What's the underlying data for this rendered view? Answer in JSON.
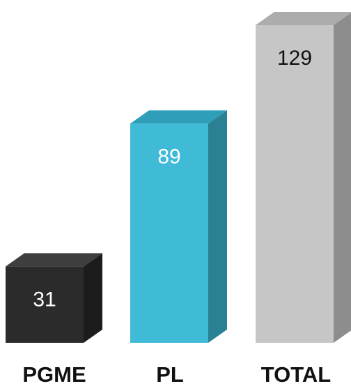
{
  "chart_data": {
    "type": "bar",
    "style": "3d-columns",
    "categories": [
      "PGME",
      "PL",
      "TOTAL"
    ],
    "values": [
      31,
      89,
      129
    ],
    "title": "",
    "xlabel": "",
    "ylabel": "",
    "ylim": [
      0,
      129
    ],
    "grid": false,
    "legend": "none",
    "colors": {
      "PGME": {
        "front": "#2b2b2b",
        "top": "#3e3e3e",
        "side": "#1c1c1c",
        "label": "#ffffff"
      },
      "PL": {
        "front": "#3fbad7",
        "top": "#2f9fb9",
        "side": "#2a8193",
        "label": "#ffffff"
      },
      "TOTAL": {
        "front": "#c6c6c6",
        "top": "#acacac",
        "side": "#8d8d8d",
        "label": "#111111"
      }
    }
  }
}
